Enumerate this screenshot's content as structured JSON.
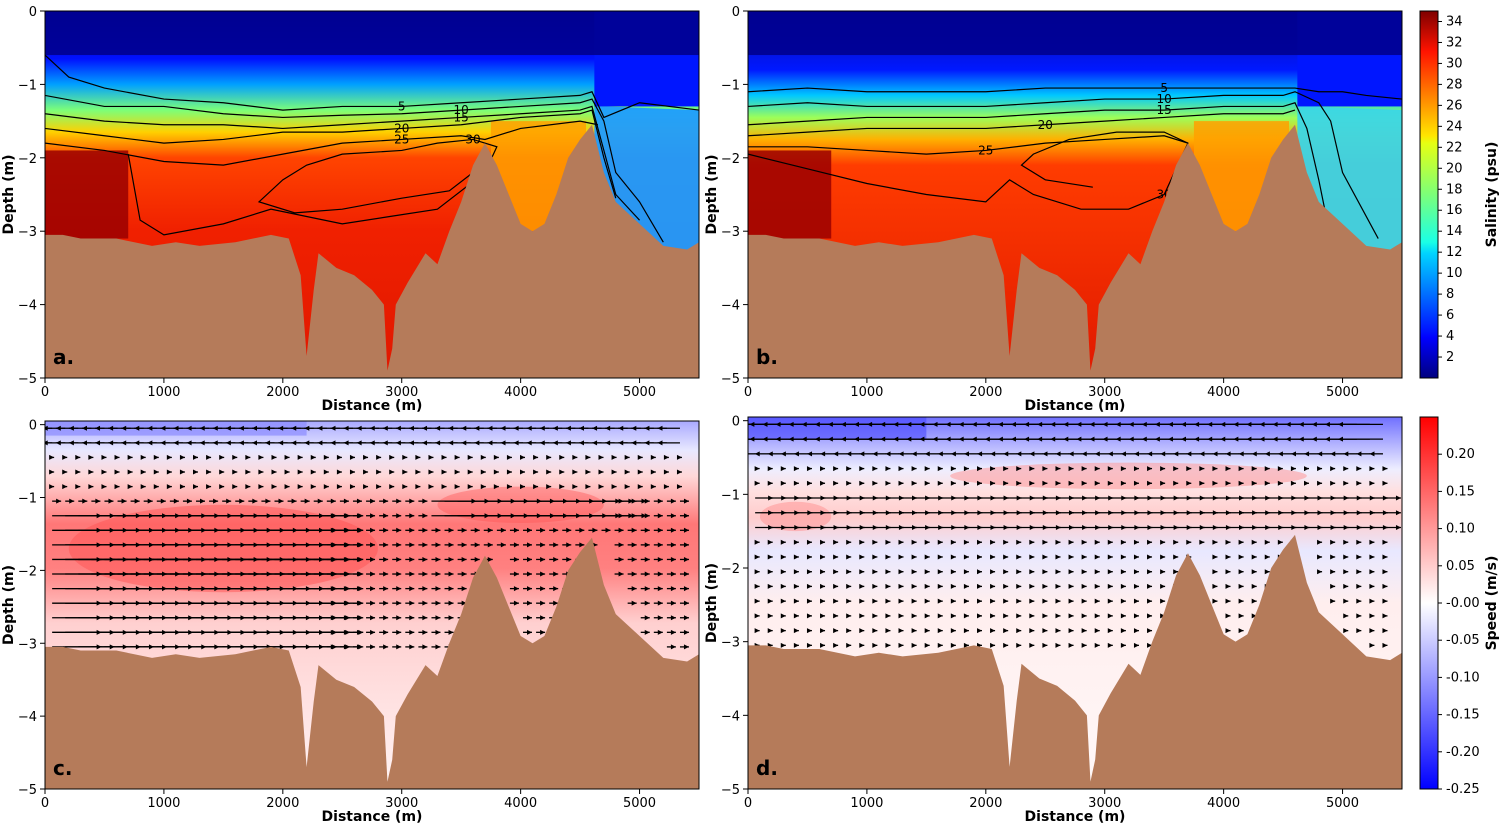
{
  "chart_data": [
    {
      "type": "heatmap",
      "panel_label": "a.",
      "xlabel": "Distance (m)",
      "ylabel": "Depth (m)",
      "xlim": [
        0,
        5500
      ],
      "ylim": [
        -5,
        0
      ],
      "xticks": [
        "0",
        "1000",
        "2000",
        "3000",
        "4000",
        "5000"
      ],
      "yticks": [
        "0",
        "−1",
        "−2",
        "−3",
        "−4",
        "−5"
      ],
      "variable": "salinity",
      "halocline": {
        "x": [
          0,
          500,
          1000,
          1500,
          2000,
          2500,
          3000,
          3500,
          3800,
          4200,
          4600,
          4700,
          5000,
          5500
        ],
        "y": [
          -1.1,
          -1.45,
          -1.55,
          -1.6,
          -1.65,
          -1.6,
          -1.55,
          -1.5,
          -1.4,
          -1.35,
          -1.3,
          -3.0,
          -3.3,
          -3.35
        ]
      },
      "contours": [
        {
          "label": "5",
          "x": [
            0,
            200,
            500,
            1000,
            1500,
            2000,
            2500,
            3000,
            3500,
            4000,
            4500,
            4600,
            4700,
            5000,
            5500
          ],
          "y": [
            -0.6,
            -0.9,
            -1.05,
            -1.2,
            -1.25,
            -1.35,
            -1.3,
            -1.3,
            -1.25,
            -1.2,
            -1.15,
            -1.1,
            -1.45,
            -1.25,
            -1.35
          ]
        },
        {
          "label": "10",
          "x": [
            0,
            500,
            1000,
            1500,
            2000,
            2500,
            3000,
            3500,
            4000,
            4500,
            4600,
            4700,
            4800,
            5000,
            5200
          ],
          "y": [
            -1.15,
            -1.3,
            -1.3,
            -1.4,
            -1.45,
            -1.42,
            -1.4,
            -1.35,
            -1.3,
            -1.25,
            -1.2,
            -1.5,
            -2.2,
            -2.6,
            -3.15
          ]
        },
        {
          "label": "15",
          "x": [
            0,
            500,
            1000,
            1500,
            2000,
            2500,
            3000,
            3500,
            4000,
            4500,
            4600,
            4700,
            4800,
            5000
          ],
          "y": [
            -1.4,
            -1.5,
            -1.55,
            -1.55,
            -1.6,
            -1.55,
            -1.5,
            -1.45,
            -1.4,
            -1.35,
            -1.3,
            -1.9,
            -2.5,
            -2.85
          ]
        },
        {
          "label": "20",
          "x": [
            0,
            500,
            1000,
            1500,
            2000,
            2500,
            3000,
            3500,
            4000,
            4500,
            4600,
            4700,
            4800
          ],
          "y": [
            -1.6,
            -1.7,
            -1.8,
            -1.75,
            -1.65,
            -1.65,
            -1.6,
            -1.55,
            -1.45,
            -1.4,
            -1.35,
            -2.0,
            -2.55
          ]
        },
        {
          "label": "25",
          "x": [
            0,
            500,
            1000,
            1500,
            2000,
            2500,
            3000,
            3500,
            3700,
            4000,
            4500,
            4650
          ],
          "y": [
            -1.8,
            -1.9,
            -2.05,
            -2.1,
            -1.95,
            -1.8,
            -1.75,
            -1.7,
            -1.75,
            -1.6,
            -1.5,
            -1.55
          ]
        },
        {
          "label": "30",
          "x": [
            700,
            800,
            1000,
            1500,
            1900,
            2200,
            2500,
            2900,
            3300,
            3700,
            3800,
            3600,
            3300,
            3000,
            2500,
            2200,
            2000,
            1800,
            2100,
            2500,
            3000,
            3400,
            3600
          ],
          "y": [
            -1.95,
            -2.85,
            -3.05,
            -2.9,
            -2.7,
            -2.8,
            -2.9,
            -2.8,
            -2.7,
            -2.2,
            -1.85,
            -1.75,
            -1.8,
            -1.9,
            -1.95,
            -2.1,
            -2.3,
            -2.6,
            -2.75,
            -2.7,
            -2.55,
            -2.45,
            -2.2
          ]
        }
      ]
    },
    {
      "type": "heatmap",
      "panel_label": "b.",
      "xlabel": "Distance (m)",
      "ylabel": "Depth (m)",
      "xlim": [
        0,
        5500
      ],
      "ylim": [
        -5,
        0
      ],
      "xticks": [
        "0",
        "1000",
        "2000",
        "3000",
        "4000",
        "5000"
      ],
      "yticks": [
        "0",
        "−1",
        "−2",
        "−3",
        "−4",
        "−5"
      ],
      "variable": "salinity",
      "halocline": {
        "x": [
          0,
          500,
          1000,
          1500,
          2000,
          2500,
          3000,
          3500,
          4000,
          4500,
          4600,
          4800,
          5000,
          5500
        ],
        "y": [
          -1.2,
          -1.4,
          -1.45,
          -1.5,
          -1.5,
          -1.5,
          -1.45,
          -1.4,
          -1.35,
          -1.3,
          -1.25,
          -1.6,
          -2.5,
          -3.15
        ]
      },
      "contours": [
        {
          "label": "5",
          "x": [
            0,
            500,
            1000,
            1500,
            2000,
            2500,
            3000,
            3500,
            4000,
            4500,
            4600,
            4800,
            5000,
            5200,
            5500
          ],
          "y": [
            -1.1,
            -1.05,
            -1.1,
            -1.1,
            -1.1,
            -1.05,
            -1.05,
            -1.05,
            -1.05,
            -1.05,
            -1.05,
            -1.1,
            -1.1,
            -1.15,
            -1.2
          ]
        },
        {
          "label": "10",
          "x": [
            0,
            500,
            1000,
            1500,
            2000,
            2500,
            3000,
            3500,
            4000,
            4500,
            4600,
            4800,
            4900,
            5000,
            5300
          ],
          "y": [
            -1.3,
            -1.25,
            -1.3,
            -1.3,
            -1.3,
            -1.25,
            -1.2,
            -1.2,
            -1.15,
            -1.15,
            -1.1,
            -1.25,
            -1.5,
            -2.2,
            -3.1
          ]
        },
        {
          "label": "15",
          "x": [
            0,
            500,
            1000,
            1500,
            2000,
            2500,
            3000,
            3500,
            4000,
            4500,
            4600,
            4700,
            4800,
            4850
          ],
          "y": [
            -1.55,
            -1.5,
            -1.45,
            -1.45,
            -1.45,
            -1.4,
            -1.35,
            -1.35,
            -1.3,
            -1.3,
            -1.25,
            -1.6,
            -2.3,
            -2.7
          ]
        },
        {
          "label": "20",
          "x": [
            0,
            500,
            1000,
            1500,
            2000,
            2500,
            3000,
            3500,
            4000,
            4500,
            4600
          ],
          "y": [
            -1.7,
            -1.65,
            -1.6,
            -1.6,
            -1.6,
            -1.55,
            -1.5,
            -1.45,
            -1.4,
            -1.4,
            -1.35
          ]
        },
        {
          "label": "25",
          "x": [
            0,
            500,
            1000,
            1500,
            2000,
            2500,
            3000,
            3500,
            3700
          ],
          "y": [
            -1.85,
            -1.85,
            -1.9,
            -1.95,
            -1.9,
            -1.8,
            -1.75,
            -1.7,
            -1.8
          ]
        },
        {
          "label": "30",
          "x": [
            0,
            500,
            1000,
            1500,
            2000,
            2200,
            2400,
            2800,
            3200,
            3500,
            3700,
            3500,
            3100,
            2700,
            2400,
            2300,
            2500,
            2900
          ],
          "y": [
            -1.95,
            -2.15,
            -2.35,
            -2.5,
            -2.6,
            -2.3,
            -2.5,
            -2.7,
            -2.7,
            -2.5,
            -1.8,
            -1.65,
            -1.65,
            -1.75,
            -1.95,
            -2.1,
            -2.3,
            -2.4
          ]
        }
      ]
    },
    {
      "type": "heatmap",
      "panel_label": "c.",
      "xlabel": "Distance (m)",
      "ylabel": "Depth (m)",
      "xlim": [
        0,
        5500
      ],
      "ylim": [
        -5,
        0.05
      ],
      "xticks": [
        "0",
        "1000",
        "2000",
        "3000",
        "4000",
        "5000"
      ],
      "yticks": [
        "0",
        "−1",
        "−2",
        "−3",
        "−4",
        "−5"
      ],
      "variable": "speed"
    },
    {
      "type": "heatmap",
      "panel_label": "d.",
      "xlabel": "Distance (m)",
      "ylabel": "Depth (m)",
      "xlim": [
        0,
        5500
      ],
      "ylim": [
        -5,
        0.05
      ],
      "xticks": [
        "0",
        "1000",
        "2000",
        "3000",
        "4000",
        "5000"
      ],
      "yticks": [
        "0",
        "−1",
        "−2",
        "−3",
        "−4",
        "−5"
      ],
      "variable": "speed"
    }
  ],
  "bathymetry": {
    "x": [
      0,
      150,
      300,
      600,
      900,
      1100,
      1300,
      1600,
      1900,
      2050,
      2150,
      2200,
      2260,
      2300,
      2450,
      2600,
      2750,
      2850,
      2880,
      2920,
      2950,
      3050,
      3200,
      3300,
      3400,
      3500,
      3600,
      3700,
      3800,
      3900,
      4000,
      4100,
      4200,
      4300,
      4400,
      4500,
      4600,
      4700,
      4800,
      5000,
      5200,
      5400,
      5500
    ],
    "y": [
      -3.05,
      -3.05,
      -3.1,
      -3.1,
      -3.2,
      -3.15,
      -3.2,
      -3.15,
      -3.05,
      -3.1,
      -3.6,
      -4.7,
      -3.8,
      -3.3,
      -3.5,
      -3.6,
      -3.8,
      -4.0,
      -4.9,
      -4.6,
      -4.0,
      -3.7,
      -3.3,
      -3.45,
      -3.0,
      -2.6,
      -2.1,
      -1.8,
      -2.1,
      -2.5,
      -2.9,
      -3.0,
      -2.9,
      -2.5,
      -2.0,
      -1.75,
      -1.55,
      -2.2,
      -2.6,
      -2.9,
      -3.2,
      -3.25,
      -3.15
    ]
  },
  "vectors": {
    "c_rows": [
      -0.05,
      -0.25,
      -0.45,
      -0.65,
      -0.85,
      -1.05,
      -1.25,
      -1.45,
      -1.65,
      -1.85,
      -2.05,
      -2.25,
      -2.45,
      -2.65,
      -2.85,
      -3.05
    ],
    "c_cols_step": 110,
    "d_rows": [
      -0.05,
      -0.25,
      -0.45,
      -0.65,
      -0.85,
      -1.05,
      -1.25,
      -1.45,
      -1.65,
      -1.85,
      -2.05,
      -2.25,
      -2.45,
      -2.65,
      -2.85,
      -3.05
    ],
    "d_cols_step": 110
  },
  "colorbars": {
    "salinity": {
      "label": "Salinity (psu)",
      "min": 0,
      "max": 35,
      "ticks": [
        "2",
        "4",
        "6",
        "8",
        "10",
        "12",
        "14",
        "16",
        "18",
        "20",
        "22",
        "24",
        "26",
        "28",
        "30",
        "32",
        "34"
      ]
    },
    "speed": {
      "label": "Speed (m/s)",
      "min": -0.25,
      "max": 0.25,
      "ticks": [
        "0.20",
        "0.15",
        "0.10",
        "0.05",
        "-0.00",
        "-0.05",
        "-0.10",
        "-0.15",
        "-0.20",
        "-0.25"
      ]
    }
  },
  "colors": {
    "bathymetry": "#b57b5a",
    "contour": "#000000",
    "vector": "#000000"
  }
}
